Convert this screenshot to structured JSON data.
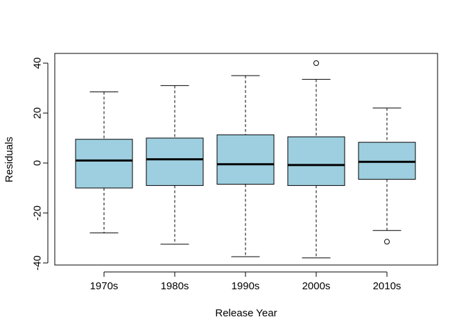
{
  "chart_data": {
    "type": "boxplot",
    "xlabel": "Release Year",
    "ylabel": "Residuals",
    "categories": [
      "1970s",
      "1980s",
      "1990s",
      "2000s",
      "2010s"
    ],
    "ylim": [
      -40,
      40
    ],
    "yticks": [
      -40,
      -20,
      0,
      20,
      40
    ],
    "ytick_labels": [
      "-40",
      "-20",
      "0",
      "20",
      "40"
    ],
    "boxes": [
      {
        "category": "1970s",
        "whisker_low": -28,
        "q1": -10,
        "median": 1,
        "q3": 9.5,
        "whisker_high": 28.5,
        "outliers": []
      },
      {
        "category": "1980s",
        "whisker_low": -32.5,
        "q1": -9,
        "median": 1.5,
        "q3": 10,
        "whisker_high": 31,
        "outliers": []
      },
      {
        "category": "1990s",
        "whisker_low": -37.5,
        "q1": -8.5,
        "median": -0.5,
        "q3": 11.3,
        "whisker_high": 35,
        "outliers": []
      },
      {
        "category": "2000s",
        "whisker_low": -38,
        "q1": -9,
        "median": -0.8,
        "q3": 10.5,
        "whisker_high": 33.5,
        "outliers": [
          40
        ]
      },
      {
        "category": "2010s",
        "whisker_low": -27,
        "q1": -6.5,
        "median": 0.5,
        "q3": 8.3,
        "whisker_high": 22,
        "outliers": [
          -31.5
        ]
      }
    ],
    "grid": false,
    "colors": {
      "box_fill": "#9ecfe0",
      "stroke": "#000000"
    }
  }
}
